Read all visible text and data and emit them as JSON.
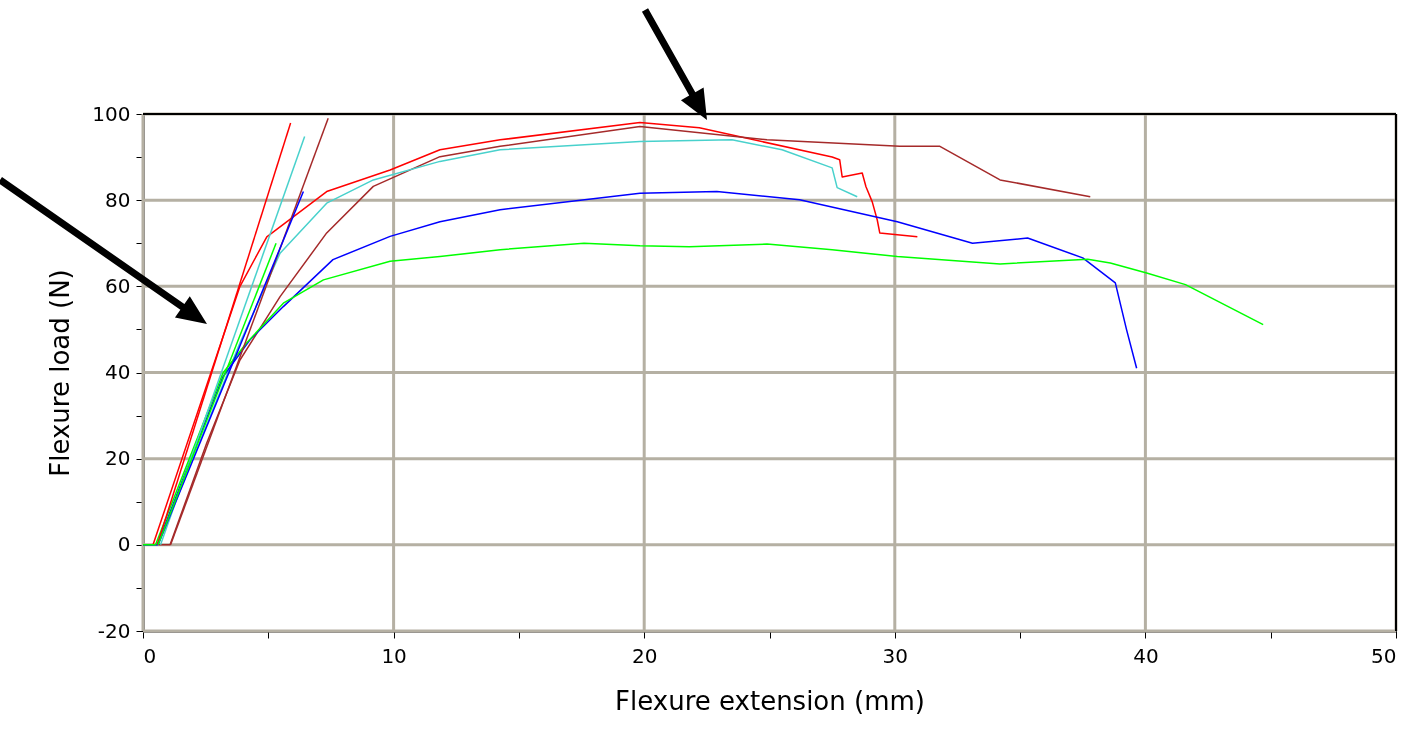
{
  "chart_data": {
    "type": "line",
    "xlabel": "Flexure extension (mm)",
    "ylabel": "Flexure load (N)",
    "xlim": [
      0,
      50
    ],
    "ylim": [
      -20,
      100
    ],
    "xticks": [
      0,
      {
        "value": 5,
        "label": null
      },
      10,
      {
        "value": 15,
        "label": null
      },
      20,
      {
        "value": 25,
        "label": null
      },
      30,
      {
        "value": 35,
        "label": null
      },
      40,
      {
        "value": 45,
        "label": null
      },
      50
    ],
    "yticks": [
      -20,
      {
        "value": -10,
        "label": null
      },
      0,
      {
        "value": 10,
        "label": null
      },
      20,
      {
        "value": 30,
        "label": null
      },
      40,
      {
        "value": 50,
        "label": null
      },
      60,
      {
        "value": 70,
        "label": null
      },
      80,
      {
        "value": 90,
        "label": null
      },
      100
    ],
    "grid": true,
    "legend": false,
    "marker": "none",
    "line_style": "solid",
    "series": [
      {
        "color": "#ff0000",
        "x": [
          0,
          0.4,
          3.87,
          4.94,
          7.33,
          9.86,
          11.85,
          14.25,
          19.83,
          22.2,
          27.5,
          27.8,
          27.9,
          28.7,
          28.85,
          29.1,
          29.3,
          29.4,
          30.9
        ],
        "values": [
          0,
          0,
          60,
          71.5,
          82,
          87,
          91.7,
          94,
          98,
          96.8,
          90,
          89.4,
          85.4,
          86.3,
          83.1,
          79.6,
          75.4,
          72.4,
          71.5
        ]
      },
      {
        "color": "#a52a2a",
        "x": [
          0,
          1.08,
          2.54,
          3.87,
          5.47,
          7.33,
          9.19,
          11.85,
          14.25,
          19.83,
          24.9,
          30.2,
          31.8,
          34.2,
          37.8
        ],
        "values": [
          0,
          0,
          23.6,
          42.9,
          57.6,
          72.4,
          83.2,
          90.1,
          92.5,
          97.1,
          94,
          92.5,
          92.5,
          84.7,
          80.8
        ]
      },
      {
        "color": "#48d1cc",
        "x": [
          0,
          0.6,
          3.87,
          5.47,
          7.33,
          9.19,
          11.85,
          14.25,
          19.83,
          23.5,
          25.5,
          27.5,
          27.7,
          28.5
        ],
        "values": [
          0,
          0,
          46.9,
          67.7,
          79.3,
          84.7,
          89,
          91.7,
          93.6,
          94,
          91.7,
          87.5,
          82.9,
          80.8
        ]
      },
      {
        "color": "#0000ff",
        "x": [
          0,
          0.57,
          3.19,
          4.27,
          5.6,
          7.58,
          9.86,
          11.85,
          14.25,
          19.83,
          22.9,
          26.2,
          30.1,
          33.1,
          35.3,
          37.5,
          38.8,
          39.25,
          39.65
        ],
        "values": [
          0,
          0,
          39,
          47.6,
          55.3,
          66.2,
          71.6,
          75,
          77.8,
          81.6,
          82,
          80.1,
          75,
          70,
          71.2,
          66.6,
          60.8,
          49.9,
          41
        ]
      },
      {
        "color": "#00ff00",
        "x": [
          0,
          0.5,
          3.19,
          4.14,
          5.6,
          7.2,
          9.86,
          11.85,
          14.25,
          17.6,
          19.83,
          21.8,
          24.9,
          27.5,
          30.1,
          34.2,
          37.7,
          38.6,
          40.05,
          41.6,
          44.7
        ],
        "values": [
          0,
          0,
          39.9,
          46.9,
          56.1,
          61.5,
          65.8,
          66.9,
          68.5,
          70,
          69.4,
          69.2,
          69.8,
          68.5,
          66.9,
          65.2,
          66.3,
          65.4,
          63.1,
          60.4,
          51.1
        ]
      },
      {
        "color": "#ff0000",
        "x": [
          0.57,
          5.89
        ],
        "values": [
          0,
          97.9
        ]
      },
      {
        "color": "#48d1cc",
        "x": [
          0.7,
          6.45
        ],
        "values": [
          0,
          94.8
        ]
      },
      {
        "color": "#a52a2a",
        "x": [
          1.1,
          7.39
        ],
        "values": [
          0,
          99
        ]
      },
      {
        "color": "#0000ff",
        "x": [
          0.6,
          6.4
        ],
        "values": [
          0,
          82
        ]
      },
      {
        "color": "#00ff00",
        "x": [
          0.6,
          5.31
        ],
        "values": [
          0,
          70
        ]
      }
    ]
  }
}
